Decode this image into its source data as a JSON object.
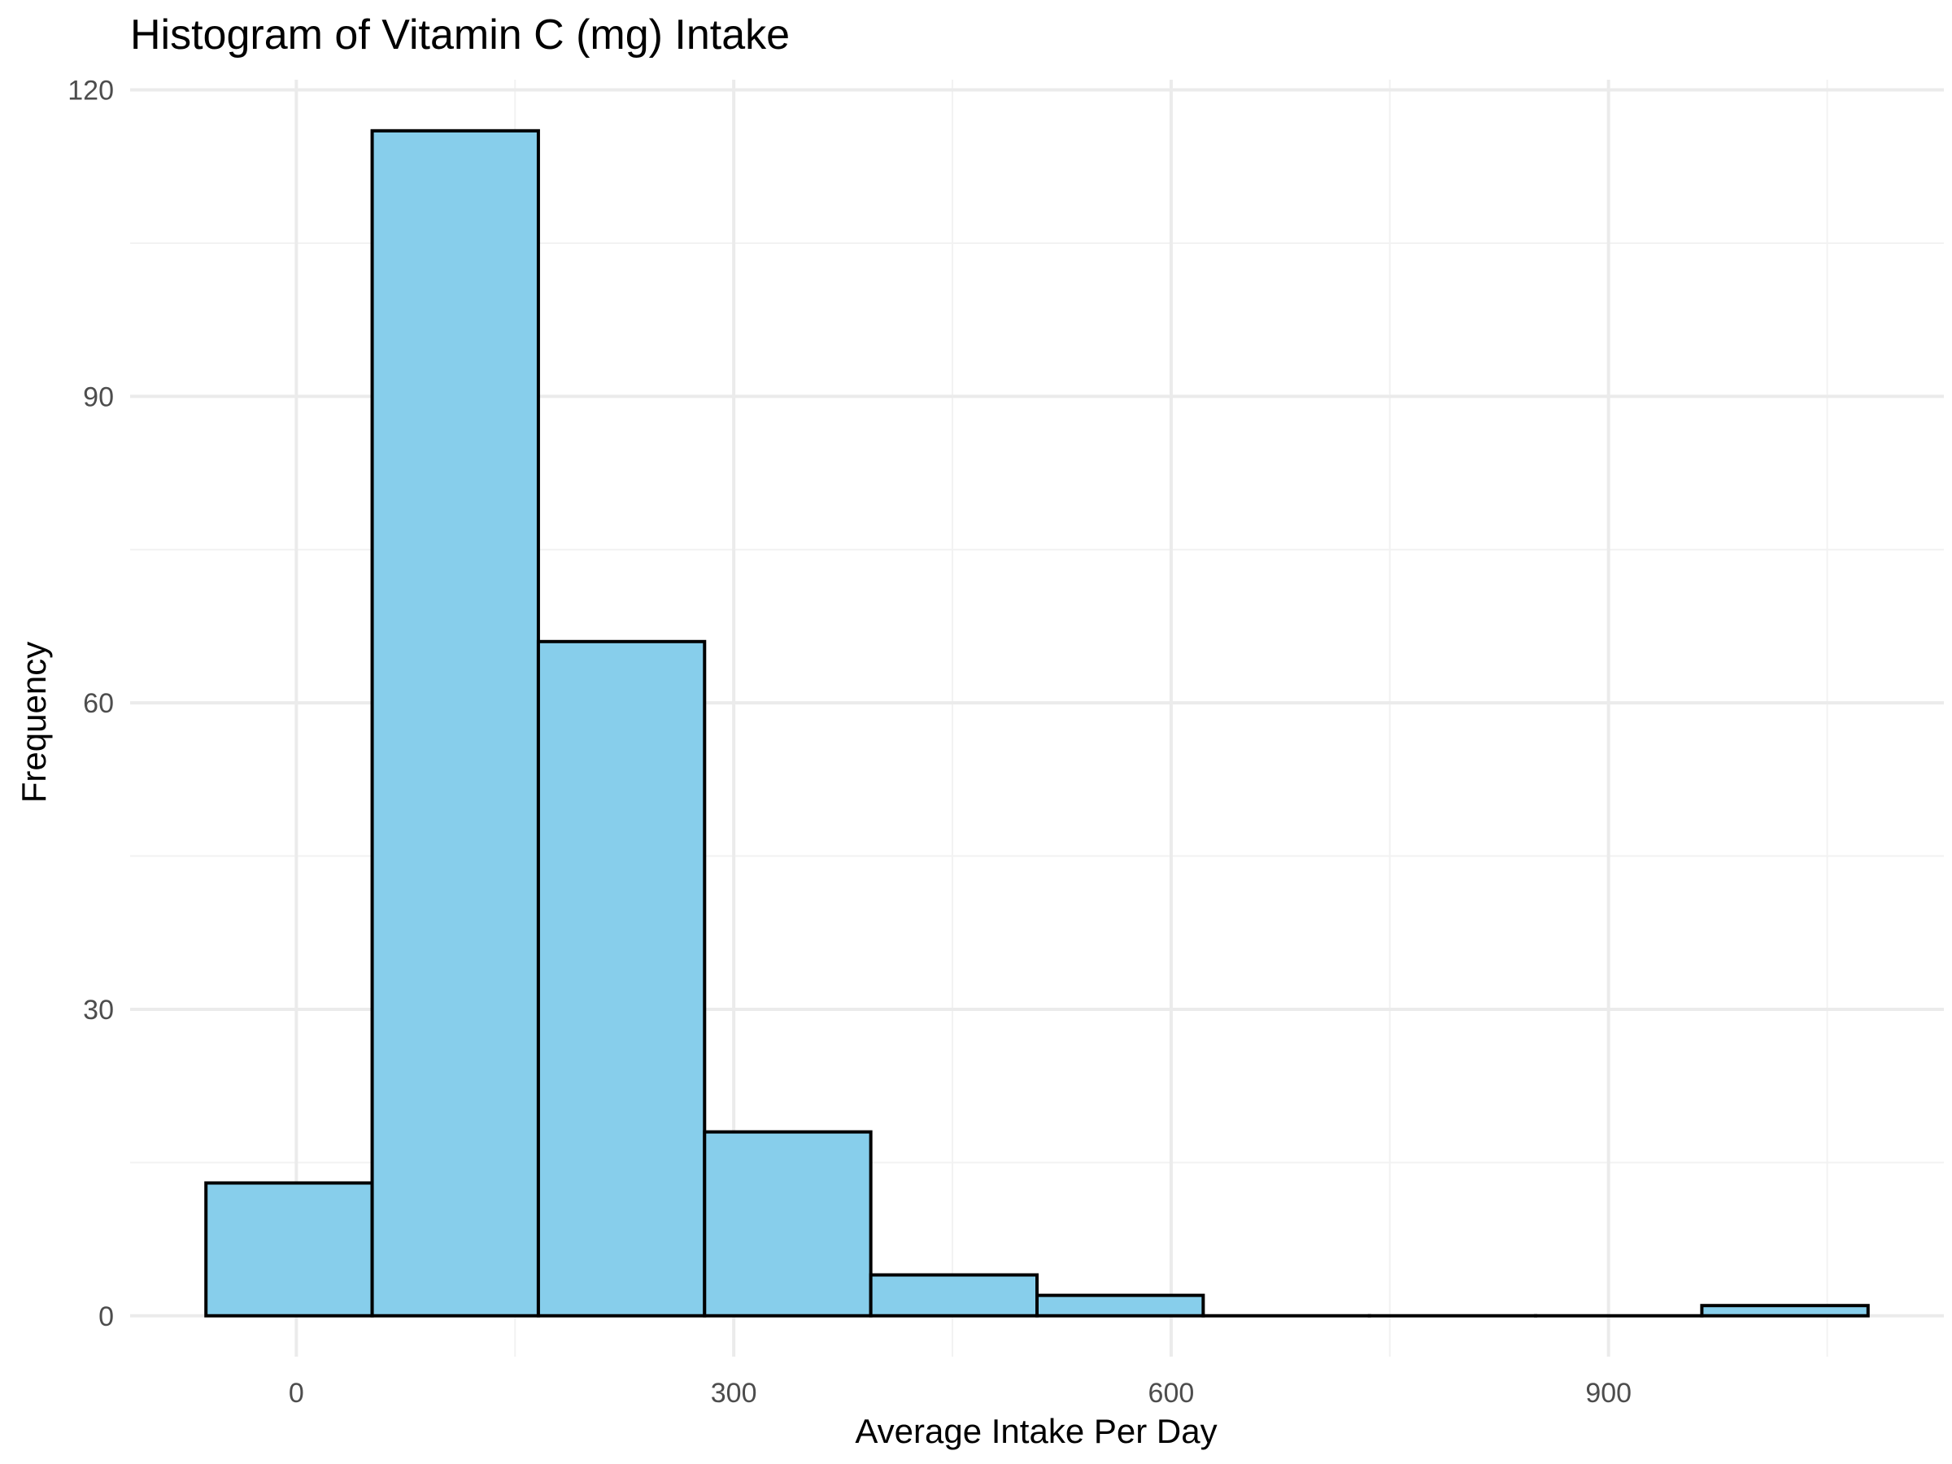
{
  "chart_data": {
    "type": "bar",
    "title": "Histogram of Vitamin C (mg) Intake",
    "xlabel": "Average Intake Per Day",
    "ylabel": "Frequency",
    "bin_width": 114,
    "bins": [
      {
        "x0": -62,
        "x1": 52,
        "count": 13
      },
      {
        "x0": 52,
        "x1": 166,
        "count": 116
      },
      {
        "x0": 166,
        "x1": 280,
        "count": 66
      },
      {
        "x0": 280,
        "x1": 394,
        "count": 18
      },
      {
        "x0": 394,
        "x1": 508,
        "count": 4
      },
      {
        "x0": 508,
        "x1": 622,
        "count": 2
      },
      {
        "x0": 622,
        "x1": 736,
        "count": 0
      },
      {
        "x0": 736,
        "x1": 850,
        "count": 0
      },
      {
        "x0": 850,
        "x1": 964,
        "count": 0
      },
      {
        "x0": 964,
        "x1": 1078,
        "count": 1
      }
    ],
    "xlim": [
      -114,
      1130
    ],
    "ylim": [
      -4,
      121
    ],
    "x_ticks": [
      0,
      300,
      600,
      900
    ],
    "x_tick_labels": [
      "0",
      "300",
      "600",
      "900"
    ],
    "x_minor_ticks": [
      150,
      450,
      750,
      1050
    ],
    "y_ticks": [
      0,
      30,
      60,
      90,
      120
    ],
    "y_tick_labels": [
      "0",
      "30",
      "60",
      "90",
      "120"
    ],
    "y_minor_ticks": [
      15,
      45,
      75,
      105
    ],
    "grid": true,
    "legend": "none",
    "colors": {
      "bar_fill": "#87ceeb",
      "bar_outline": "#000000",
      "grid": "#ebebeb",
      "background": "#ffffff"
    }
  }
}
